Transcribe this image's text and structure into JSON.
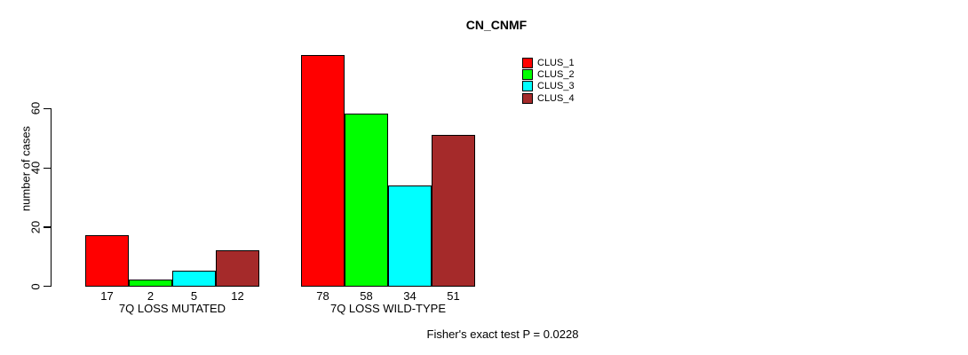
{
  "chart_data": {
    "type": "bar",
    "title": "CN_CNMF",
    "ylabel": "number of cases",
    "xlabel": "",
    "yticks": [
      0,
      20,
      40,
      60
    ],
    "ylim": [
      0,
      78
    ],
    "grid": false,
    "legend_position": "top-right",
    "categories": [
      "7Q LOSS MUTATED",
      "7Q LOSS WILD-TYPE"
    ],
    "series": [
      {
        "name": "CLUS_1",
        "color": "#FF0000",
        "values": [
          17,
          78
        ]
      },
      {
        "name": "CLUS_2",
        "color": "#00FF00",
        "values": [
          2,
          58
        ]
      },
      {
        "name": "CLUS_3",
        "color": "#00FFFF",
        "values": [
          5,
          34
        ]
      },
      {
        "name": "CLUS_4",
        "color": "#A52A2A",
        "values": [
          12,
          51
        ]
      }
    ],
    "annotation": "Fisher's exact test P = 0.0228"
  }
}
